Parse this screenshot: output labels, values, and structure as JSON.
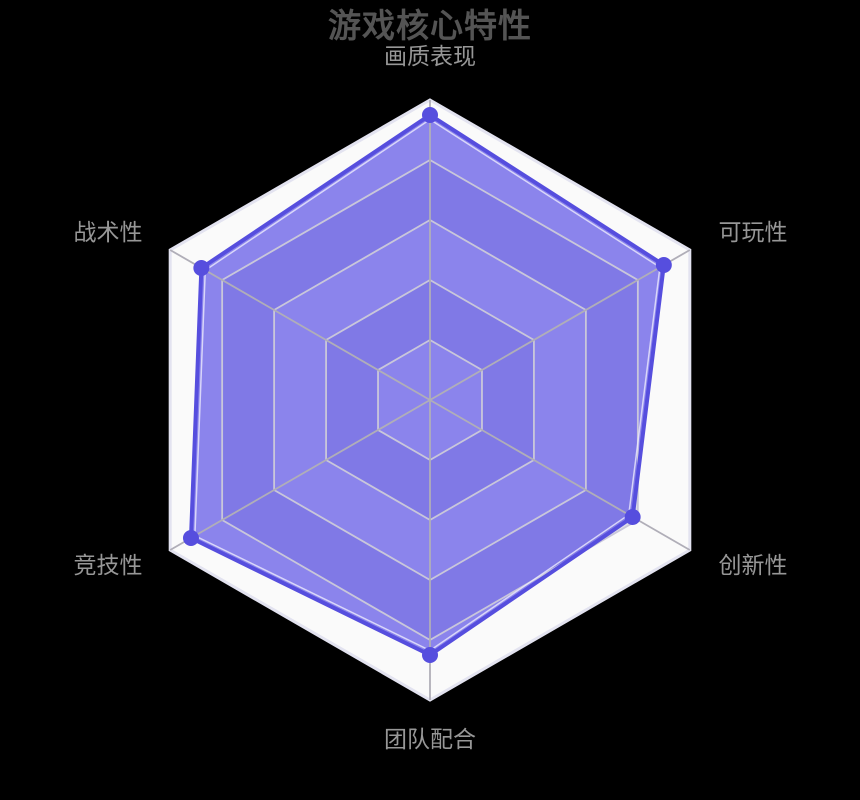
{
  "page": {
    "background": "#000000"
  },
  "chart_data": {
    "type": "radar",
    "title": "游戏核心特性",
    "indicators": [
      {
        "name": "画质表现",
        "max": 100
      },
      {
        "name": "可玩性",
        "max": 100
      },
      {
        "name": "创新性",
        "max": 100
      },
      {
        "name": "团队配合",
        "max": 100
      },
      {
        "name": "竞技性",
        "max": 100
      },
      {
        "name": "战术性",
        "max": 100
      }
    ],
    "values": [
      95,
      90,
      78,
      85,
      92,
      88
    ],
    "ring_count": 5,
    "axis_range": [
      0,
      100
    ],
    "grid": "hexagonal, 5 concentric rings, alternating split-area bands",
    "legend_position": "none",
    "colors": {
      "band_light": "#fafafa",
      "band_dark": "#dedee9",
      "grid_line": "#c9c7da",
      "outer_line": "#e3e3f0",
      "axis_line": "#b0aeb8",
      "series_fill": "rgba(71,60,227,0.62)",
      "series_line": "#564ede",
      "series_inner_highlight": "rgba(236,235,252,0.8)",
      "dot": "#564ede",
      "title_color": "#545454",
      "label_color": "#979797"
    }
  }
}
